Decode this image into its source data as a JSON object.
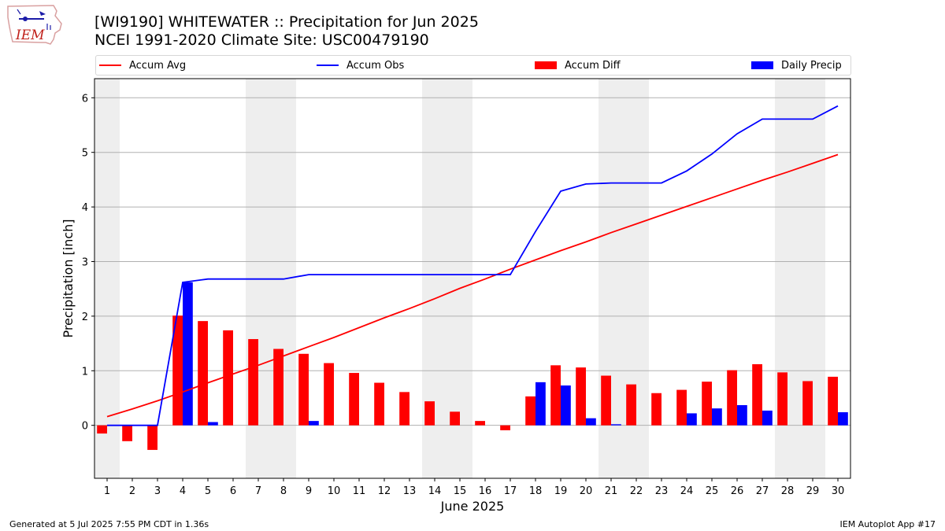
{
  "header": {
    "title_line1": "[WI9190] WHITEWATER :: Precipitation for Jun 2025",
    "title_line2": "NCEI 1991-2020 Climate Site: USC00479190"
  },
  "logo": {
    "text": "IEM",
    "icon": "iem-iowa-map-logo"
  },
  "footer": {
    "left": "Generated at 5 Jul 2025 7:55 PM CDT in 1.36s",
    "right": "IEM Autoplot App #17"
  },
  "colors": {
    "accum_avg": "#ff0000",
    "accum_obs": "#0000ff",
    "accum_diff": "#ff0000",
    "daily_precip": "#0000ff",
    "weekend_band": "#eeeeee",
    "grid": "#b0b0b0"
  },
  "chart_data": {
    "type": "bar",
    "xlabel": "June 2025",
    "ylabel": "Precipitation [inch]",
    "ylim": [
      -0.97,
      6.35
    ],
    "xlim": [
      0.5,
      30.5
    ],
    "yticks": [
      "0",
      "1",
      "2",
      "3",
      "4",
      "5",
      "6"
    ],
    "xticks": [
      "1",
      "2",
      "3",
      "4",
      "5",
      "6",
      "7",
      "8",
      "9",
      "10",
      "11",
      "12",
      "13",
      "14",
      "15",
      "16",
      "17",
      "18",
      "19",
      "20",
      "21",
      "22",
      "23",
      "24",
      "25",
      "26",
      "27",
      "28",
      "29",
      "30"
    ],
    "grid": "horizontal",
    "legend_position": "top",
    "weekend_days": [
      1,
      7,
      8,
      14,
      15,
      21,
      22,
      28,
      29
    ],
    "series": [
      {
        "name": "Accum Avg",
        "kind": "line",
        "color": "#ff0000",
        "values": [
          0.16,
          0.3,
          0.45,
          0.61,
          0.78,
          0.94,
          1.1,
          1.27,
          1.44,
          1.61,
          1.79,
          1.97,
          2.14,
          2.32,
          2.51,
          2.68,
          2.86,
          3.03,
          3.2,
          3.36,
          3.53,
          3.69,
          3.85,
          4.01,
          4.17,
          4.33,
          4.49,
          4.64,
          4.8,
          4.96
        ]
      },
      {
        "name": "Accum Obs",
        "kind": "line",
        "color": "#0000ff",
        "values": [
          0.0,
          0.0,
          0.0,
          2.62,
          2.68,
          2.68,
          2.68,
          2.68,
          2.76,
          2.76,
          2.76,
          2.76,
          2.76,
          2.76,
          2.76,
          2.76,
          2.76,
          3.55,
          4.29,
          4.42,
          4.44,
          4.44,
          4.44,
          4.66,
          4.97,
          5.34,
          5.61,
          5.61,
          5.61,
          5.85
        ]
      },
      {
        "name": "Accum Diff",
        "kind": "bar",
        "color": "#ff0000",
        "values": [
          -0.15,
          -0.29,
          -0.45,
          2.01,
          1.91,
          1.74,
          1.58,
          1.4,
          1.31,
          1.14,
          0.96,
          0.78,
          0.61,
          0.44,
          0.25,
          0.08,
          -0.09,
          0.53,
          1.1,
          1.06,
          0.91,
          0.75,
          0.59,
          0.65,
          0.8,
          1.01,
          1.12,
          0.97,
          0.81,
          0.89
        ]
      },
      {
        "name": "Daily Precip",
        "kind": "bar",
        "color": "#0000ff",
        "values": [
          0.0,
          0.0,
          0.0,
          2.62,
          0.06,
          0.0,
          0.0,
          0.0,
          0.08,
          0.0,
          0.0,
          0.0,
          0.0,
          0.0,
          0.0,
          0.0,
          0.0,
          0.79,
          0.73,
          0.13,
          0.02,
          0.0,
          0.0,
          0.22,
          0.31,
          0.37,
          0.27,
          0.0,
          0.0,
          0.24
        ]
      }
    ]
  }
}
